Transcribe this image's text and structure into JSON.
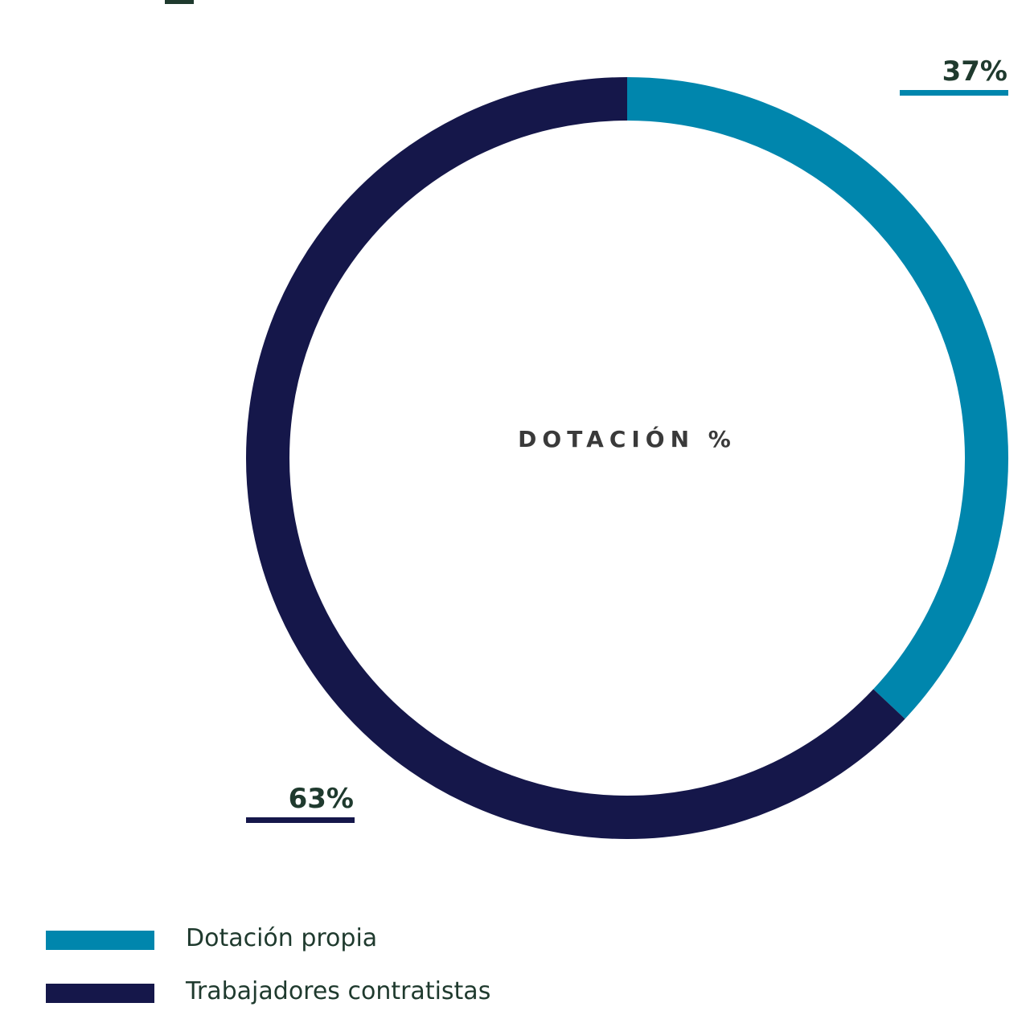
{
  "chart_data": {
    "type": "pie",
    "title": "DOTACIÓN %",
    "slices": [
      {
        "name": "Dotación propia",
        "value": 37,
        "label": "37%",
        "color": "#0086ad"
      },
      {
        "name": "Trabajadores contratistas",
        "value": 63,
        "label": "63%",
        "color": "#15174a"
      }
    ],
    "legend_position": "bottom-left"
  }
}
